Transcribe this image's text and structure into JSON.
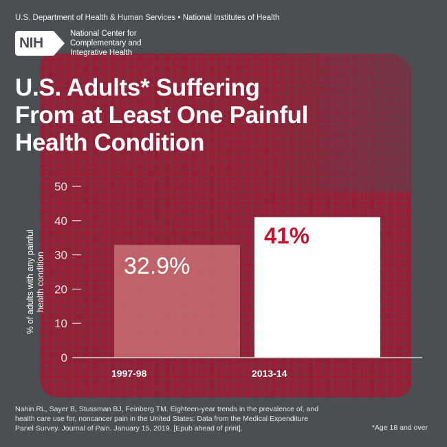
{
  "header": {
    "agencies": "U.S. Department of Health & Human Services • National Institutes of Health",
    "logo_text": "NIH",
    "center_name_lines": [
      "National Center for",
      "Complementary and",
      "Integrative Health"
    ]
  },
  "title_lines": [
    "U.S. Adults* Suffering",
    "From at Least One Painful",
    "Health Condition"
  ],
  "chart_data": {
    "type": "bar",
    "title": "U.S. Adults* Suffering From at Least One Painful Health Condition",
    "categories": [
      "1997-98",
      "2013-14"
    ],
    "values": [
      32.9,
      41
    ],
    "data_labels": [
      "32.9%",
      "41%"
    ],
    "xlabel": "",
    "ylabel_lines": [
      "% of adults with any painful",
      "health condition"
    ],
    "ylim": [
      0,
      50
    ],
    "yticks": [
      0,
      10,
      20,
      30,
      40,
      50
    ],
    "ytick_labels": [
      "0",
      "10",
      "20",
      "30",
      "40",
      "50"
    ],
    "grid": false,
    "bar_colors": [
      "#c97173",
      "#ffffff"
    ],
    "label_colors": [
      "#ffffff",
      "#c8102e"
    ]
  },
  "footer": {
    "citation_lines": [
      "Nahin RL, Sayer B, Stussman BJ, Feinberg TM. Eighteen-year trends in the prevalence of, and",
      "health care use for, noncancer pain in the United States: Data from the Medical Expenditure",
      "Panel Survey. Journal of Pain. January 15, 2019. [Epub ahead of print]."
    ],
    "footnote": "*Age 18 and over"
  },
  "colors": {
    "background": "#4b4e53",
    "texture": "#9e1a33",
    "accent": "#c8102e"
  }
}
